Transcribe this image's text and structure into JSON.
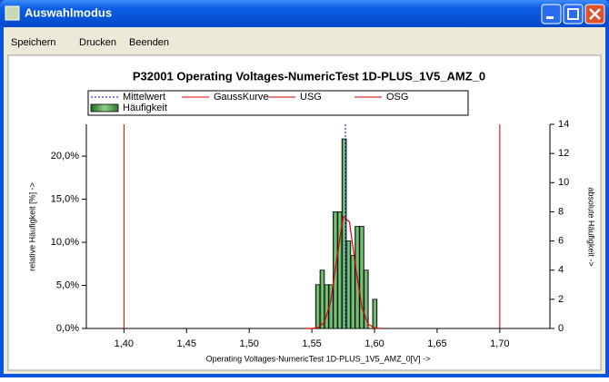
{
  "window": {
    "title": "Auswahlmodus"
  },
  "menu": [
    "Speichern",
    "Drucken",
    "Beenden"
  ],
  "chart_data": {
    "type": "histogram",
    "title": "P32001    Operating Voltages-NumericTest 1D-PLUS_1V5_AMZ_0",
    "x_label": "Operating Voltages-NumericTest 1D-PLUS_1V5_AMZ_0[V] ->",
    "y_label": "relative Häufigkeit [%] ->",
    "y2_label": "absolute Häufigkeit ->",
    "xlim": [
      1.37,
      1.74
    ],
    "xticks": [
      {
        "value": 1.4,
        "label": "1,40"
      },
      {
        "value": 1.45,
        "label": "1,45"
      },
      {
        "value": 1.5,
        "label": "1,50"
      },
      {
        "value": 1.55,
        "label": "1,55"
      },
      {
        "value": 1.6,
        "label": "1,60"
      },
      {
        "value": 1.65,
        "label": "1,65"
      },
      {
        "value": 1.7,
        "label": "1,70"
      }
    ],
    "ylim": [
      0,
      23.7
    ],
    "yticks": [
      {
        "value": 0,
        "label": "0,0%"
      },
      {
        "value": 5,
        "label": "5,0%"
      },
      {
        "value": 10,
        "label": "10,0%"
      },
      {
        "value": 15,
        "label": "15,0%"
      },
      {
        "value": 20,
        "label": "20,0%"
      }
    ],
    "y2lim": [
      0,
      14
    ],
    "y2ticks": [
      0,
      2,
      4,
      6,
      8,
      10,
      12,
      14
    ],
    "histogram": {
      "name": "Häufigkeit",
      "color": "#3f9a3f",
      "axis": "y2",
      "bins": [
        1.553,
        1.5565,
        1.56,
        1.5635,
        1.567,
        1.5705,
        1.574,
        1.5775,
        1.581,
        1.5845,
        1.588,
        1.5915,
        1.595,
        1.5985,
        1.602
      ],
      "counts": [
        3,
        4,
        3,
        3,
        8,
        8,
        13,
        6,
        5,
        7,
        7,
        4,
        0,
        2
      ]
    },
    "mean": {
      "name": "Mittelwert",
      "color": "#0000ff",
      "value": 1.5768
    },
    "gauss": {
      "name": "GaussKurve",
      "color": "#e00000",
      "axis": "y2",
      "x": [
        1.545,
        1.55,
        1.555,
        1.56,
        1.565,
        1.57,
        1.575,
        1.58,
        1.585,
        1.59,
        1.595,
        1.6,
        1.605
      ],
      "values": [
        0,
        0,
        0.06,
        0.42,
        1.84,
        4.85,
        7.68,
        7.3,
        4.16,
        1.43,
        0.29,
        0.04,
        0
      ]
    },
    "usg": {
      "name": "USG",
      "color": "#c00000",
      "value": 1.4
    },
    "osg": {
      "name": "OSG",
      "color": "#c00000",
      "value": 1.7
    }
  }
}
